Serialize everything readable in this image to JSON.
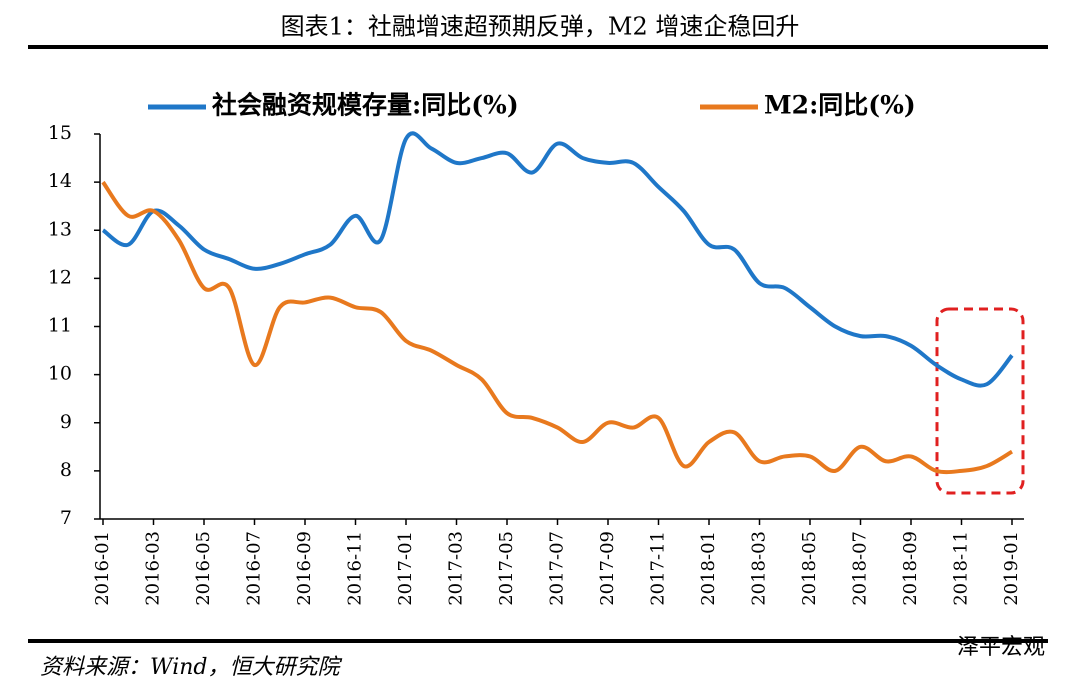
{
  "title": "图表1：社融增速超预期反弹，M2 增速企稳回升",
  "chart_data": {
    "type": "line",
    "categories": [
      "2016-01",
      null,
      "2016-03",
      null,
      "2016-05",
      null,
      "2016-07",
      null,
      "2016-09",
      null,
      "2016-11",
      null,
      "2017-01",
      null,
      "2017-03",
      null,
      "2017-05",
      null,
      "2017-07",
      null,
      "2017-09",
      null,
      "2017-11",
      null,
      "2018-01",
      null,
      "2018-03",
      null,
      "2018-05",
      null,
      "2018-07",
      null,
      "2018-09",
      null,
      "2018-11",
      null,
      "2019-01"
    ],
    "series": [
      {
        "name": "社会融资规模存量:同比(%)",
        "color": "#1f77c8",
        "values": [
          13.0,
          12.7,
          13.4,
          13.1,
          12.6,
          12.4,
          12.2,
          12.3,
          12.5,
          12.7,
          13.3,
          12.8,
          14.9,
          14.7,
          14.4,
          14.5,
          14.6,
          14.2,
          14.8,
          14.5,
          14.4,
          14.4,
          13.9,
          13.4,
          12.7,
          12.6,
          11.9,
          11.8,
          11.4,
          11.0,
          10.8,
          10.8,
          10.6,
          10.2,
          9.9,
          9.8,
          10.4
        ]
      },
      {
        "name": "M2:同比(%)",
        "color": "#e8791e",
        "values": [
          14.0,
          13.3,
          13.4,
          12.8,
          11.8,
          11.8,
          10.2,
          11.4,
          11.5,
          11.6,
          11.4,
          11.3,
          10.7,
          10.5,
          10.2,
          9.9,
          9.2,
          9.1,
          8.9,
          8.6,
          9.0,
          8.9,
          9.1,
          8.1,
          8.6,
          8.8,
          8.2,
          8.3,
          8.3,
          8.0,
          8.5,
          8.2,
          8.3,
          8.0,
          8.0,
          8.1,
          8.4
        ]
      }
    ],
    "ylim": [
      7,
      15
    ],
    "yticks": [
      7,
      8,
      9,
      10,
      11,
      12,
      13,
      14,
      15
    ],
    "grid": false,
    "legend": "top"
  },
  "source": "资料来源：Wind，恒大研究院",
  "watermark": "泽平宏观"
}
